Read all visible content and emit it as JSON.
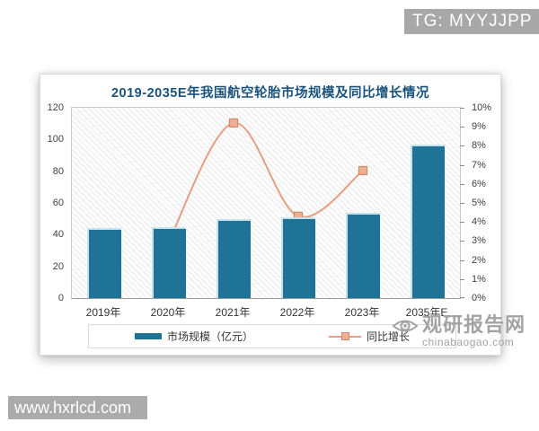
{
  "badges": {
    "top_right": "TG: MYYJJPP",
    "bottom_left": "www.hxrlcd.com"
  },
  "watermark": {
    "site_name": "观研报告网",
    "site_domain": "chinabaogao.com"
  },
  "chart_data": {
    "type": "bar",
    "combo": "bar+line",
    "title": "2019-2035E年我国航空轮胎市场规模及同比增长情况",
    "categories": [
      "2019年",
      "2020年",
      "2021年",
      "2022年",
      "2023年",
      "2035年E"
    ],
    "series": [
      {
        "name": "市场规模（亿元）",
        "type": "bar",
        "axis": "left",
        "values": [
          44,
          45,
          50,
          51,
          54,
          97
        ]
      },
      {
        "name": "同比增长",
        "type": "line",
        "axis": "right",
        "values": [
          null,
          3.0,
          9.2,
          4.3,
          6.7,
          null
        ]
      }
    ],
    "left_axis": {
      "min": 0,
      "max": 120,
      "ticks": [
        120,
        100,
        80,
        60,
        40,
        20,
        0
      ]
    },
    "right_axis": {
      "min": 0,
      "max": 10,
      "ticks": [
        "10%",
        "9%",
        "8%",
        "7%",
        "6%",
        "5%",
        "4%",
        "3%",
        "2%",
        "1%",
        "0%"
      ]
    },
    "legend_position": "bottom",
    "grid": false
  },
  "colors": {
    "bar": "#1f7396",
    "bar_edge": "#c6e2ef",
    "line": "#e59e85",
    "marker_fill": "#edb093",
    "marker_border": "#cf8a6b",
    "title": "#19527a",
    "badge_bg": "#a8a8a8",
    "watermark_gray": "#a3a3a3"
  }
}
